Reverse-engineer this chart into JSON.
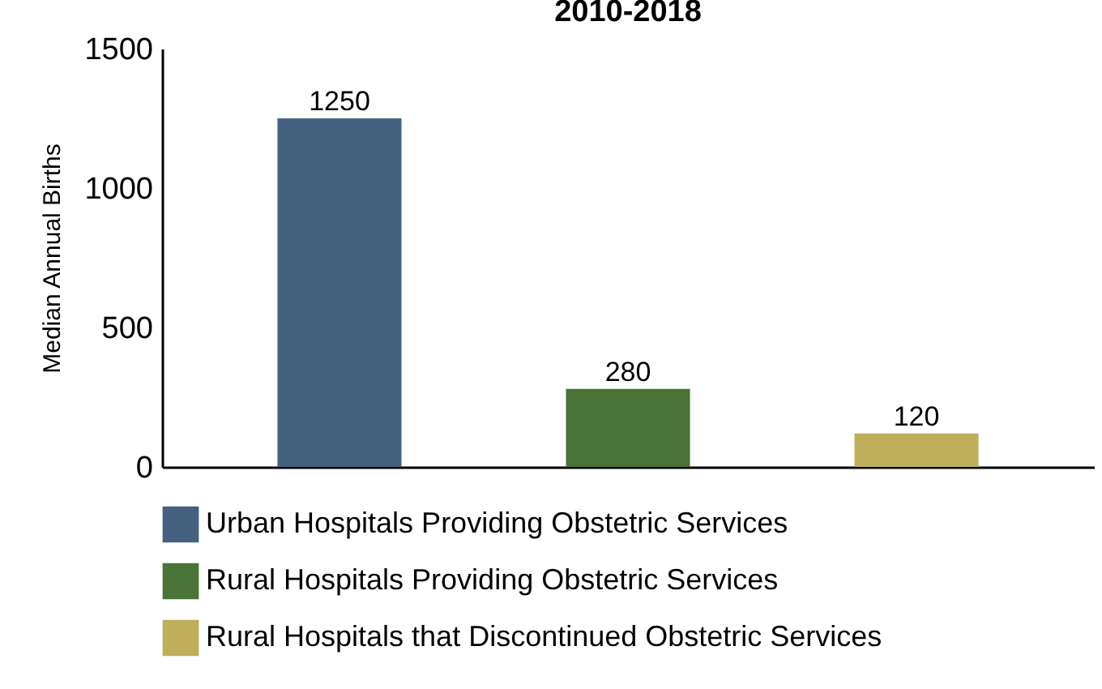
{
  "chart_data": {
    "type": "bar",
    "title": "2010-2018",
    "ylabel": "Median Annual Births",
    "categories": [
      null,
      null,
      null
    ],
    "series": [
      {
        "name": "Urban Hospitals Providing Obstetric Services",
        "color": "#44627f",
        "values": [
          1250,
          null,
          null
        ]
      },
      {
        "name": "Rural Hospitals Providing Obstetric Services",
        "color": "#4a7337",
        "values": [
          null,
          280,
          null
        ]
      },
      {
        "name": "Rural Hospitals that Discontinued Obstetric Services",
        "color": "#bfae5a",
        "values": [
          null,
          null,
          120
        ]
      }
    ],
    "ylim": [
      0,
      1500
    ],
    "yticks": [
      0,
      500,
      1000,
      1500
    ],
    "data_labels": true,
    "legend": "bottom",
    "grid": false
  }
}
